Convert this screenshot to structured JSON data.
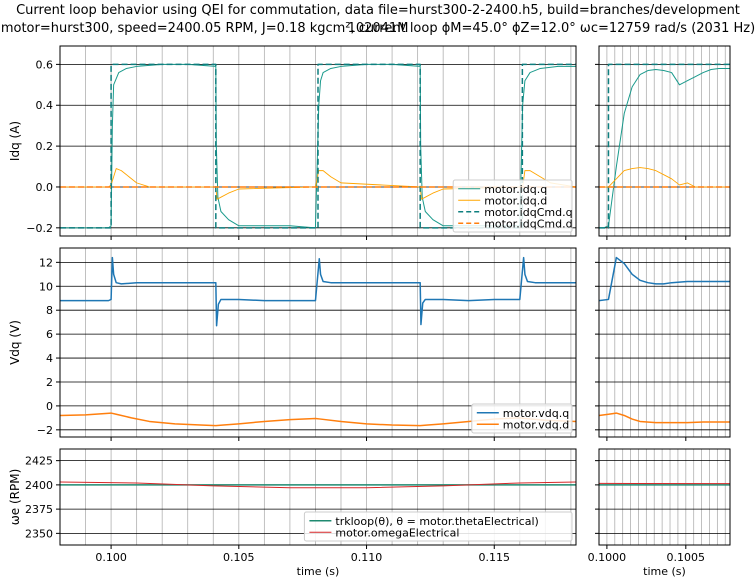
{
  "title": {
    "line1": "Current loop behavior using QEI for commutation, data file=hurst300-2-2400.h5, build=branches/development 102041M",
    "line2": "motor=hurst300, speed=2400.05 RPM, J=0.18 kgcm², current loop ϕM=45.0° ϕZ=12.0° ωc=12759 rad/s (2031 Hz)"
  },
  "colors": {
    "blue": "#1f77b4",
    "orange": "#ff7f0e",
    "teal": "#1a9a8c",
    "amber": "#ffa500",
    "dteal": "#0e7f7f",
    "red": "#d62728",
    "dgreen": "#1f8a70"
  },
  "chart_data": [
    {
      "id": "idq-main",
      "type": "line",
      "ylabel": "Idq (A)",
      "xlim": [
        0.098,
        0.1182
      ],
      "ylim": [
        -0.24,
        0.69
      ],
      "yticks": [
        -0.2,
        0.0,
        0.2,
        0.4,
        0.6
      ],
      "ytick_labels": [
        "−0.2",
        "0.0",
        "0.2",
        "0.4",
        "0.6"
      ],
      "major_grid_y": true,
      "minor_grid_x": true,
      "legend_position": "lower-right",
      "series": [
        {
          "name": "motor.idq.q",
          "color": "teal",
          "style": "solid",
          "width": 1.0,
          "x": [
            0.098,
            0.0999,
            0.1,
            0.10005,
            0.1001,
            0.1003,
            0.1006,
            0.101,
            0.102,
            0.103,
            0.1041,
            0.10412,
            0.10418,
            0.1043,
            0.1046,
            0.105,
            0.106,
            0.107,
            0.108,
            0.10813,
            0.1082,
            0.1083,
            0.1086,
            0.109,
            0.11,
            0.111,
            0.1121,
            0.11212,
            0.11218,
            0.1123,
            0.1126,
            0.113,
            0.114,
            0.115,
            0.116,
            0.11611,
            0.1162,
            0.1164,
            0.1168,
            0.1175,
            0.1182
          ],
          "y": [
            -0.2,
            -0.2,
            -0.19,
            0.3,
            0.5,
            0.56,
            0.58,
            0.59,
            0.6,
            0.6,
            0.59,
            0.2,
            -0.05,
            -0.12,
            -0.16,
            -0.19,
            -0.19,
            -0.19,
            -0.2,
            0.4,
            0.52,
            0.56,
            0.58,
            0.59,
            0.6,
            0.6,
            0.59,
            0.2,
            -0.05,
            -0.12,
            -0.16,
            -0.19,
            -0.19,
            -0.19,
            -0.19,
            0.4,
            0.52,
            0.56,
            0.58,
            0.59,
            0.59
          ]
        },
        {
          "name": "motor.idq.d",
          "color": "amber",
          "style": "solid",
          "width": 0.9,
          "x": [
            0.098,
            0.0999,
            0.1,
            0.1002,
            0.1004,
            0.1007,
            0.101,
            0.1015,
            0.1041,
            0.10415,
            0.1043,
            0.1046,
            0.105,
            0.108,
            0.10813,
            0.1083,
            0.1086,
            0.109,
            0.1121,
            0.11215,
            0.1123,
            0.1126,
            0.113,
            0.11611,
            0.1162,
            0.1164,
            0.1168,
            0.1172,
            0.1182
          ],
          "y": [
            0.0,
            0.0,
            0.01,
            0.09,
            0.08,
            0.05,
            0.02,
            0.0,
            0.0,
            -0.06,
            -0.05,
            -0.03,
            -0.01,
            0.0,
            0.08,
            0.08,
            0.05,
            0.02,
            0.0,
            -0.06,
            -0.05,
            -0.03,
            -0.01,
            0.0,
            0.08,
            0.08,
            0.05,
            0.02,
            0.0
          ]
        },
        {
          "name": "motor.idqCmd.q",
          "color": "dteal",
          "style": "dashed",
          "width": 1.5,
          "x": [
            0.098,
            0.1,
            0.1,
            0.1041,
            0.1041,
            0.1081,
            0.1081,
            0.1121,
            0.1121,
            0.1161,
            0.1161,
            0.1182
          ],
          "y": [
            -0.2,
            -0.2,
            0.6,
            0.6,
            -0.2,
            -0.2,
            0.6,
            0.6,
            -0.2,
            -0.2,
            0.6,
            0.6
          ]
        },
        {
          "name": "motor.idqCmd.d",
          "color": "orange",
          "style": "dashed",
          "width": 1.5,
          "x": [
            0.098,
            0.1182
          ],
          "y": [
            0.0,
            0.0
          ]
        }
      ]
    },
    {
      "id": "idq-zoom",
      "type": "line",
      "xlim": [
        0.09995,
        0.10078
      ],
      "ylim": [
        -0.24,
        0.69
      ],
      "minor_grid_x": true,
      "major_grid_y": true,
      "series": [
        {
          "name": "motor.idq.q",
          "color": "teal",
          "style": "solid",
          "width": 1.0,
          "x": [
            0.09995,
            0.09998,
            0.10001,
            0.10006,
            0.10011,
            0.10016,
            0.10021,
            0.10026,
            0.10031,
            0.10036,
            0.10041,
            0.10046,
            0.10051,
            0.10056,
            0.10061,
            0.10066,
            0.10071,
            0.10078
          ],
          "y": [
            -0.2,
            -0.2,
            -0.19,
            0.1,
            0.36,
            0.49,
            0.55,
            0.57,
            0.575,
            0.57,
            0.56,
            0.5,
            0.52,
            0.54,
            0.56,
            0.575,
            0.58,
            0.58
          ]
        },
        {
          "name": "motor.idq.d",
          "color": "amber",
          "style": "solid",
          "width": 0.9,
          "x": [
            0.09995,
            0.09998,
            0.10001,
            0.10006,
            0.10011,
            0.10016,
            0.10021,
            0.10026,
            0.10031,
            0.10036,
            0.10041,
            0.10046,
            0.10051,
            0.10056,
            0.10061,
            0.10066,
            0.10078
          ],
          "y": [
            0.0,
            0.0,
            0.0,
            0.04,
            0.08,
            0.09,
            0.095,
            0.09,
            0.08,
            0.06,
            0.04,
            0.01,
            0.02,
            0.0,
            0.0,
            0.0,
            0.0
          ]
        },
        {
          "name": "motor.idqCmd.q",
          "color": "dteal",
          "style": "dashed",
          "width": 1.5,
          "x": [
            0.09995,
            0.10001,
            0.10001,
            0.10078
          ],
          "y": [
            -0.2,
            -0.2,
            0.6,
            0.6
          ]
        },
        {
          "name": "motor.idqCmd.d",
          "color": "orange",
          "style": "dashed",
          "width": 1.5,
          "x": [
            0.09995,
            0.10078
          ],
          "y": [
            0.0,
            0.0
          ]
        }
      ]
    },
    {
      "id": "vdq-main",
      "type": "line",
      "ylabel": "Vdq (V)",
      "xlim": [
        0.098,
        0.1182
      ],
      "ylim": [
        -2.6,
        13.2
      ],
      "yticks": [
        -2,
        0,
        2,
        4,
        6,
        8,
        10,
        12
      ],
      "ytick_labels": [
        "−2",
        "0",
        "2",
        "4",
        "6",
        "8",
        "10",
        "12"
      ],
      "major_grid_y": true,
      "minor_grid_x": true,
      "legend_position": "lower-right",
      "series": [
        {
          "name": "motor.vdq.q",
          "color": "blue",
          "style": "solid",
          "width": 1.5,
          "x": [
            0.098,
            0.0999,
            0.1,
            0.10005,
            0.1001,
            0.1002,
            0.1004,
            0.101,
            0.102,
            0.103,
            0.1041,
            0.10413,
            0.1042,
            0.1043,
            0.1046,
            0.105,
            0.106,
            0.107,
            0.108,
            0.10815,
            0.1082,
            0.1083,
            0.1086,
            0.109,
            0.11,
            0.111,
            0.1121,
            0.11213,
            0.1122,
            0.1123,
            0.1126,
            0.113,
            0.114,
            0.115,
            0.116,
            0.11615,
            0.1162,
            0.1163,
            0.1166,
            0.117,
            0.1182
          ],
          "y": [
            8.8,
            8.8,
            8.9,
            12.4,
            11.0,
            10.3,
            10.2,
            10.3,
            10.3,
            10.3,
            10.3,
            6.7,
            8.5,
            8.9,
            8.9,
            8.9,
            8.8,
            8.8,
            8.8,
            12.3,
            11.0,
            10.4,
            10.3,
            10.3,
            10.3,
            10.3,
            10.3,
            6.8,
            8.6,
            8.9,
            8.9,
            8.9,
            8.8,
            8.9,
            8.9,
            12.4,
            11.0,
            10.4,
            10.3,
            10.3,
            10.3
          ]
        },
        {
          "name": "motor.vdq.d",
          "color": "orange",
          "style": "solid",
          "width": 1.5,
          "x": [
            0.098,
            0.099,
            0.1,
            0.1002,
            0.1008,
            0.1015,
            0.1025,
            0.1035,
            0.1041,
            0.1044,
            0.105,
            0.106,
            0.107,
            0.108,
            0.1082,
            0.109,
            0.11,
            0.111,
            0.1121,
            0.1124,
            0.113,
            0.114,
            0.115,
            0.116,
            0.1162,
            0.117,
            0.1182
          ],
          "y": [
            -0.8,
            -0.75,
            -0.6,
            -0.7,
            -1.0,
            -1.3,
            -1.5,
            -1.6,
            -1.65,
            -1.6,
            -1.5,
            -1.3,
            -1.15,
            -1.05,
            -1.1,
            -1.3,
            -1.5,
            -1.6,
            -1.65,
            -1.6,
            -1.5,
            -1.3,
            -1.1,
            -1.0,
            -1.05,
            -1.2,
            -1.3
          ]
        }
      ]
    },
    {
      "id": "vdq-zoom",
      "type": "line",
      "xlim": [
        0.09995,
        0.10078
      ],
      "ylim": [
        -2.6,
        13.2
      ],
      "minor_grid_x": true,
      "major_grid_y": true,
      "series": [
        {
          "name": "motor.vdq.q",
          "color": "blue",
          "style": "solid",
          "width": 1.5,
          "x": [
            0.09995,
            0.10001,
            0.10006,
            0.10011,
            0.10016,
            0.10021,
            0.10026,
            0.10031,
            0.10036,
            0.10041,
            0.10051,
            0.10061,
            0.10078
          ],
          "y": [
            8.8,
            8.9,
            12.4,
            11.9,
            11.0,
            10.5,
            10.3,
            10.2,
            10.2,
            10.3,
            10.4,
            10.4,
            10.4
          ]
        },
        {
          "name": "motor.vdq.d",
          "color": "orange",
          "style": "solid",
          "width": 1.5,
          "x": [
            0.09995,
            0.10001,
            0.10006,
            0.10011,
            0.10016,
            0.10021,
            0.10031,
            0.10041,
            0.10051,
            0.10061,
            0.10078
          ],
          "y": [
            -0.8,
            -0.7,
            -0.6,
            -0.8,
            -1.1,
            -1.3,
            -1.4,
            -1.4,
            -1.4,
            -1.35,
            -1.35
          ]
        }
      ]
    },
    {
      "id": "omega-main",
      "type": "line",
      "ylabel": "ωe (RPM)",
      "xlabel": "time (s)",
      "xlim": [
        0.098,
        0.1182
      ],
      "ylim": [
        2338,
        2437
      ],
      "yticks": [
        2350,
        2375,
        2400,
        2425
      ],
      "ytick_labels": [
        "2350",
        "2375",
        "2400",
        "2425"
      ],
      "xticks": [
        0.1,
        0.105,
        0.11,
        0.115
      ],
      "xtick_labels": [
        "0.100",
        "0.105",
        "0.110",
        "0.115"
      ],
      "major_grid_y": true,
      "minor_grid_x": true,
      "legend_position": "lower-right",
      "series": [
        {
          "name": "trkloop(θ), θ = motor.thetaElectrical)",
          "color": "dgreen",
          "style": "solid",
          "width": 1.5,
          "x": [
            0.098,
            0.1182
          ],
          "y": [
            2400,
            2400
          ]
        },
        {
          "name": "motor.omegaElectrical",
          "color": "red",
          "style": "solid",
          "width": 1.0,
          "x": [
            0.098,
            0.101,
            0.104,
            0.107,
            0.11,
            0.113,
            0.116,
            0.1182
          ],
          "y": [
            2403,
            2402,
            2399,
            2397,
            2397,
            2399,
            2402,
            2403
          ]
        }
      ]
    },
    {
      "id": "omega-zoom",
      "type": "line",
      "xlabel": "time (s)",
      "xlim": [
        0.09995,
        0.10078
      ],
      "ylim": [
        2338,
        2437
      ],
      "xticks": [
        0.1,
        0.1005
      ],
      "xtick_labels": [
        "0.1000",
        "0.1005"
      ],
      "minor_grid_x": true,
      "major_grid_y": true,
      "series": [
        {
          "name": "trkloop(θ), θ = motor.thetaElectrical)",
          "color": "dgreen",
          "style": "solid",
          "width": 1.5,
          "x": [
            0.09995,
            0.10078
          ],
          "y": [
            2400,
            2400
          ]
        },
        {
          "name": "motor.omegaElectrical",
          "color": "red",
          "style": "solid",
          "width": 1.0,
          "x": [
            0.09995,
            0.10078
          ],
          "y": [
            2401.5,
            2401.3
          ]
        }
      ]
    }
  ]
}
